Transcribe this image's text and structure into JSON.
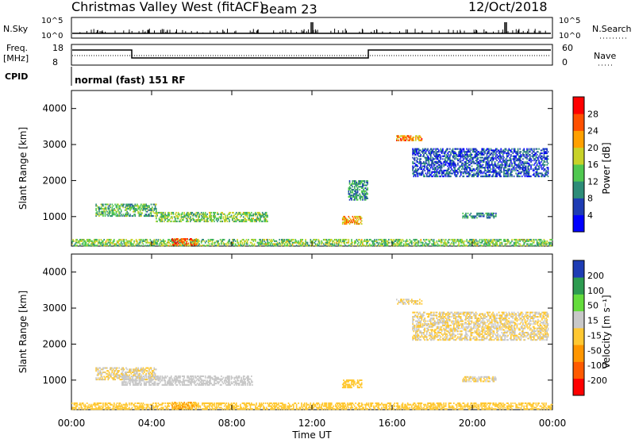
{
  "header": {
    "title": "Christmas Valley West (fitACF)",
    "beam": "Beam 23",
    "date": "12/Oct/2018"
  },
  "left_labels": {
    "nsky": "N.Sky",
    "freq": "Freq.",
    "freq_unit": "[MHz]",
    "cpid": "CPID",
    "nsky_ticks": [
      "10^5",
      "10^0"
    ],
    "freq_ticks": [
      "18",
      "8"
    ]
  },
  "right_labels": {
    "nsearch": "N.Search",
    "nave": "Nave",
    "nsearch_ticks": [
      "10^5",
      "10^0"
    ],
    "nave_ticks": [
      "60",
      "0"
    ]
  },
  "cpid_text": "normal (fast) 151 RF",
  "colors": {
    "power": [
      "#0000ff",
      "#1e3cb4",
      "#2d8c78",
      "#50c850",
      "#c8d228",
      "#ffa000",
      "#ff5000",
      "#ff0000"
    ],
    "velocity": [
      "#ff0000",
      "#ff5a00",
      "#ff9600",
      "#ffc832",
      "#c8c8c8",
      "#64dc3c",
      "#2d9b50",
      "#1e3cb4"
    ],
    "ground": "#c8c8c8"
  },
  "chart_data": [
    {
      "type": "heatmap",
      "name": "power",
      "ylabel": "Slant Range [km]",
      "xlim": [
        0,
        24
      ],
      "ylim": [
        180,
        4500
      ],
      "x_ticks": [
        "00:00",
        "04:00",
        "08:00",
        "12:00",
        "16:00",
        "20:00",
        "00:00"
      ],
      "y_ticks": [
        1000,
        2000,
        3000,
        4000
      ],
      "colorbar": {
        "label": "Power [dB]",
        "ticks": [
          "4",
          "8",
          "12",
          "16",
          "20",
          "24",
          "28"
        ],
        "range": [
          0,
          30
        ]
      },
      "features": [
        {
          "t0": 1.2,
          "t1": 4.2,
          "r0": 1000,
          "r1": 1350,
          "value": 12
        },
        {
          "t0": 4.2,
          "t1": 9.8,
          "r0": 850,
          "r1": 1100,
          "value": 14
        },
        {
          "t0": 13.5,
          "t1": 14.5,
          "r0": 780,
          "r1": 1000,
          "value": 20
        },
        {
          "t0": 13.8,
          "t1": 14.8,
          "r0": 1450,
          "r1": 2000,
          "value": 10
        },
        {
          "t0": 16.2,
          "t1": 17.5,
          "r0": 3100,
          "r1": 3250,
          "value": 22
        },
        {
          "t0": 17.0,
          "t1": 23.8,
          "r0": 2100,
          "r1": 2900,
          "value": 6
        },
        {
          "t0": 19.5,
          "t1": 21.2,
          "r0": 950,
          "r1": 1100,
          "value": 10
        },
        {
          "t0": 0.0,
          "t1": 24.0,
          "r0": 180,
          "r1": 380,
          "value": 14
        },
        {
          "t0": 5.0,
          "t1": 6.2,
          "r0": 200,
          "r1": 380,
          "value": 24
        }
      ]
    },
    {
      "type": "heatmap",
      "name": "velocity",
      "ylabel": "Slant Range [km]",
      "xlabel": "Time UT",
      "xlim": [
        0,
        24
      ],
      "ylim": [
        180,
        4500
      ],
      "x_ticks": [
        "00:00",
        "04:00",
        "08:00",
        "12:00",
        "16:00",
        "20:00",
        "00:00"
      ],
      "y_ticks": [
        1000,
        2000,
        3000,
        4000
      ],
      "colorbar": {
        "label": "Velocity [m s⁻¹]",
        "ticks": [
          "200",
          "100",
          "50",
          "15",
          "-15",
          "-50",
          "-100",
          "-200"
        ],
        "range": [
          -250,
          250
        ]
      },
      "features": [
        {
          "t0": 1.2,
          "t1": 4.2,
          "r0": 1000,
          "r1": 1350,
          "value": 0
        },
        {
          "t0": 2.5,
          "t1": 9.0,
          "r0": 850,
          "r1": 1100,
          "value": 30
        },
        {
          "t0": 13.5,
          "t1": 14.5,
          "r0": 780,
          "r1": 1000,
          "value": -40
        },
        {
          "t0": 16.2,
          "t1": 17.5,
          "r0": 3100,
          "r1": 3250,
          "value": 0
        },
        {
          "t0": 17.0,
          "t1": 23.8,
          "r0": 2100,
          "r1": 2900,
          "value": 0
        },
        {
          "t0": 19.5,
          "t1": 21.2,
          "r0": 950,
          "r1": 1100,
          "value": 0
        },
        {
          "t0": 0.0,
          "t1": 24.0,
          "r0": 180,
          "r1": 380,
          "value": -30
        },
        {
          "t0": 5.0,
          "t1": 6.2,
          "r0": 200,
          "r1": 380,
          "value": -60
        }
      ]
    }
  ]
}
